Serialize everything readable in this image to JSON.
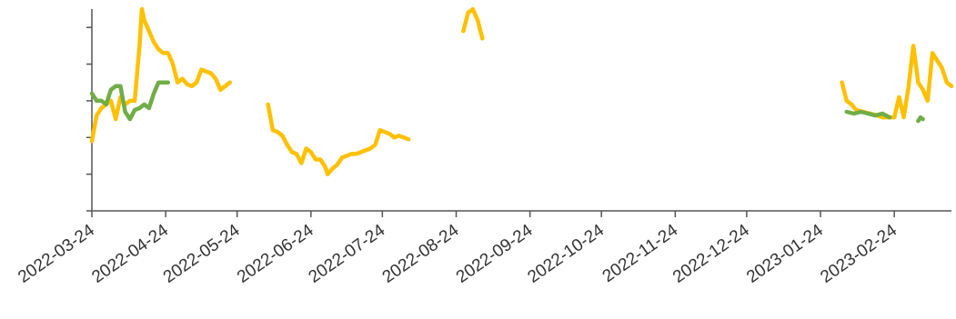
{
  "chart_data": {
    "type": "line",
    "title": "",
    "xlabel": "",
    "ylabel": "",
    "x_tick_labels": [
      "2022-03-24",
      "2022-04-24",
      "2022-05-24",
      "2022-06-24",
      "2022-07-24",
      "2022-08-24",
      "2022-09-24",
      "2022-10-24",
      "2022-11-24",
      "2022-12-24",
      "2023-01-24",
      "2023-02-24"
    ],
    "xlim": [
      "2022-03-24",
      "2023-03-20"
    ],
    "ylim": [
      0,
      5.5
    ],
    "y_ticks": [
      0,
      1,
      2,
      3,
      4,
      5
    ],
    "y_tick_labels_visible": false,
    "grid": false,
    "legend": "none",
    "series": [
      {
        "color": "#ffc000",
        "points": [
          [
            "2022-03-24",
            1.9
          ],
          [
            "2022-03-26",
            2.6
          ],
          [
            "2022-03-28",
            2.8
          ],
          [
            "2022-03-30",
            2.9
          ],
          [
            "2022-04-01",
            3.0
          ],
          [
            "2022-04-03",
            2.5
          ],
          [
            "2022-04-05",
            3.1
          ],
          [
            "2022-04-07",
            2.9
          ],
          [
            "2022-04-09",
            3.0
          ],
          [
            "2022-04-11",
            3.0
          ],
          [
            "2022-04-13",
            4.5
          ],
          [
            "2022-04-14",
            5.5
          ],
          [
            "2022-04-15",
            5.2
          ],
          [
            "2022-04-17",
            4.9
          ],
          [
            "2022-04-19",
            4.6
          ],
          [
            "2022-04-21",
            4.4
          ],
          [
            "2022-04-23",
            4.3
          ],
          [
            "2022-04-25",
            4.3
          ],
          [
            "2022-04-27",
            4.0
          ],
          [
            "2022-04-29",
            3.5
          ],
          [
            "2022-05-01",
            3.6
          ],
          [
            "2022-05-03",
            3.45
          ],
          [
            "2022-05-05",
            3.4
          ],
          [
            "2022-05-07",
            3.5
          ],
          [
            "2022-05-09",
            3.85
          ],
          [
            "2022-05-11",
            3.8
          ],
          [
            "2022-05-13",
            3.75
          ],
          [
            "2022-05-15",
            3.6
          ],
          [
            "2022-05-17",
            3.3
          ],
          [
            "2022-05-19",
            3.4
          ],
          [
            "2022-05-21",
            3.5
          ],
          [
            null,
            null
          ],
          [
            "2022-06-06",
            2.9
          ],
          [
            "2022-06-08",
            2.2
          ],
          [
            "2022-06-10",
            2.15
          ],
          [
            "2022-06-12",
            2.05
          ],
          [
            "2022-06-14",
            1.8
          ],
          [
            "2022-06-16",
            1.6
          ],
          [
            "2022-06-18",
            1.55
          ],
          [
            "2022-06-20",
            1.3
          ],
          [
            "2022-06-22",
            1.7
          ],
          [
            "2022-06-24",
            1.6
          ],
          [
            "2022-06-26",
            1.4
          ],
          [
            "2022-06-28",
            1.4
          ],
          [
            "2022-06-30",
            1.2
          ],
          [
            "2022-07-01",
            1.0
          ],
          [
            "2022-07-03",
            1.15
          ],
          [
            "2022-07-05",
            1.25
          ],
          [
            "2022-07-07",
            1.45
          ],
          [
            "2022-07-09",
            1.5
          ],
          [
            "2022-07-11",
            1.55
          ],
          [
            "2022-07-13",
            1.55
          ],
          [
            "2022-07-15",
            1.6
          ],
          [
            "2022-07-17",
            1.65
          ],
          [
            "2022-07-19",
            1.7
          ],
          [
            "2022-07-21",
            1.8
          ],
          [
            "2022-07-23",
            2.2
          ],
          [
            "2022-07-25",
            2.15
          ],
          [
            "2022-07-27",
            2.1
          ],
          [
            "2022-07-29",
            2.0
          ],
          [
            "2022-07-31",
            2.05
          ],
          [
            "2022-08-02",
            2.0
          ],
          [
            "2022-08-04",
            1.95
          ],
          [
            null,
            null
          ],
          [
            "2022-08-27",
            4.9
          ],
          [
            "2022-08-29",
            5.4
          ],
          [
            "2022-08-31",
            5.5
          ],
          [
            "2022-09-02",
            5.2
          ],
          [
            "2022-09-04",
            4.7
          ],
          [
            null,
            null
          ],
          [
            "2023-02-02",
            3.5
          ],
          [
            "2023-02-04",
            3.0
          ],
          [
            "2023-02-06",
            2.9
          ],
          [
            "2023-02-08",
            2.75
          ],
          [
            "2023-02-11",
            2.7
          ],
          [
            "2023-02-14",
            2.65
          ],
          [
            "2023-02-17",
            2.6
          ],
          [
            "2023-02-19",
            2.55
          ],
          [
            "2023-02-21",
            2.55
          ],
          [
            "2023-02-24",
            2.55
          ],
          [
            "2023-02-26",
            3.1
          ],
          [
            "2023-02-28",
            2.55
          ],
          [
            "2023-03-02",
            3.4
          ],
          [
            "2023-03-04",
            4.5
          ],
          [
            "2023-03-06",
            3.5
          ],
          [
            "2023-03-08",
            3.3
          ],
          [
            "2023-03-10",
            3.0
          ],
          [
            "2023-03-12",
            4.3
          ],
          [
            "2023-03-14",
            4.1
          ],
          [
            "2023-03-16",
            3.9
          ],
          [
            "2023-03-18",
            3.5
          ],
          [
            "2023-03-20",
            3.4
          ]
        ]
      },
      {
        "color": "#70ad47",
        "points": [
          [
            "2022-03-24",
            3.2
          ],
          [
            "2022-03-26",
            3.0
          ],
          [
            "2022-03-28",
            3.0
          ],
          [
            "2022-03-30",
            2.9
          ],
          [
            "2022-04-01",
            3.3
          ],
          [
            "2022-04-03",
            3.4
          ],
          [
            "2022-04-05",
            3.4
          ],
          [
            "2022-04-07",
            2.7
          ],
          [
            "2022-04-09",
            2.5
          ],
          [
            "2022-04-11",
            2.75
          ],
          [
            "2022-04-13",
            2.8
          ],
          [
            "2022-04-15",
            2.9
          ],
          [
            "2022-04-17",
            2.8
          ],
          [
            "2022-04-19",
            3.2
          ],
          [
            "2022-04-21",
            3.5
          ],
          [
            "2022-04-23",
            3.5
          ],
          [
            "2022-04-25",
            3.5
          ],
          [
            null,
            null
          ],
          [
            "2023-02-04",
            2.7
          ],
          [
            "2023-02-07",
            2.65
          ],
          [
            "2023-02-10",
            2.7
          ],
          [
            "2023-02-13",
            2.65
          ],
          [
            "2023-02-16",
            2.6
          ],
          [
            "2023-02-19",
            2.65
          ],
          [
            "2023-02-22",
            2.55
          ],
          [
            null,
            null
          ],
          [
            "2023-03-06",
            2.45
          ],
          [
            "2023-03-07",
            2.55
          ],
          [
            "2023-03-08",
            2.5
          ]
        ]
      }
    ]
  }
}
